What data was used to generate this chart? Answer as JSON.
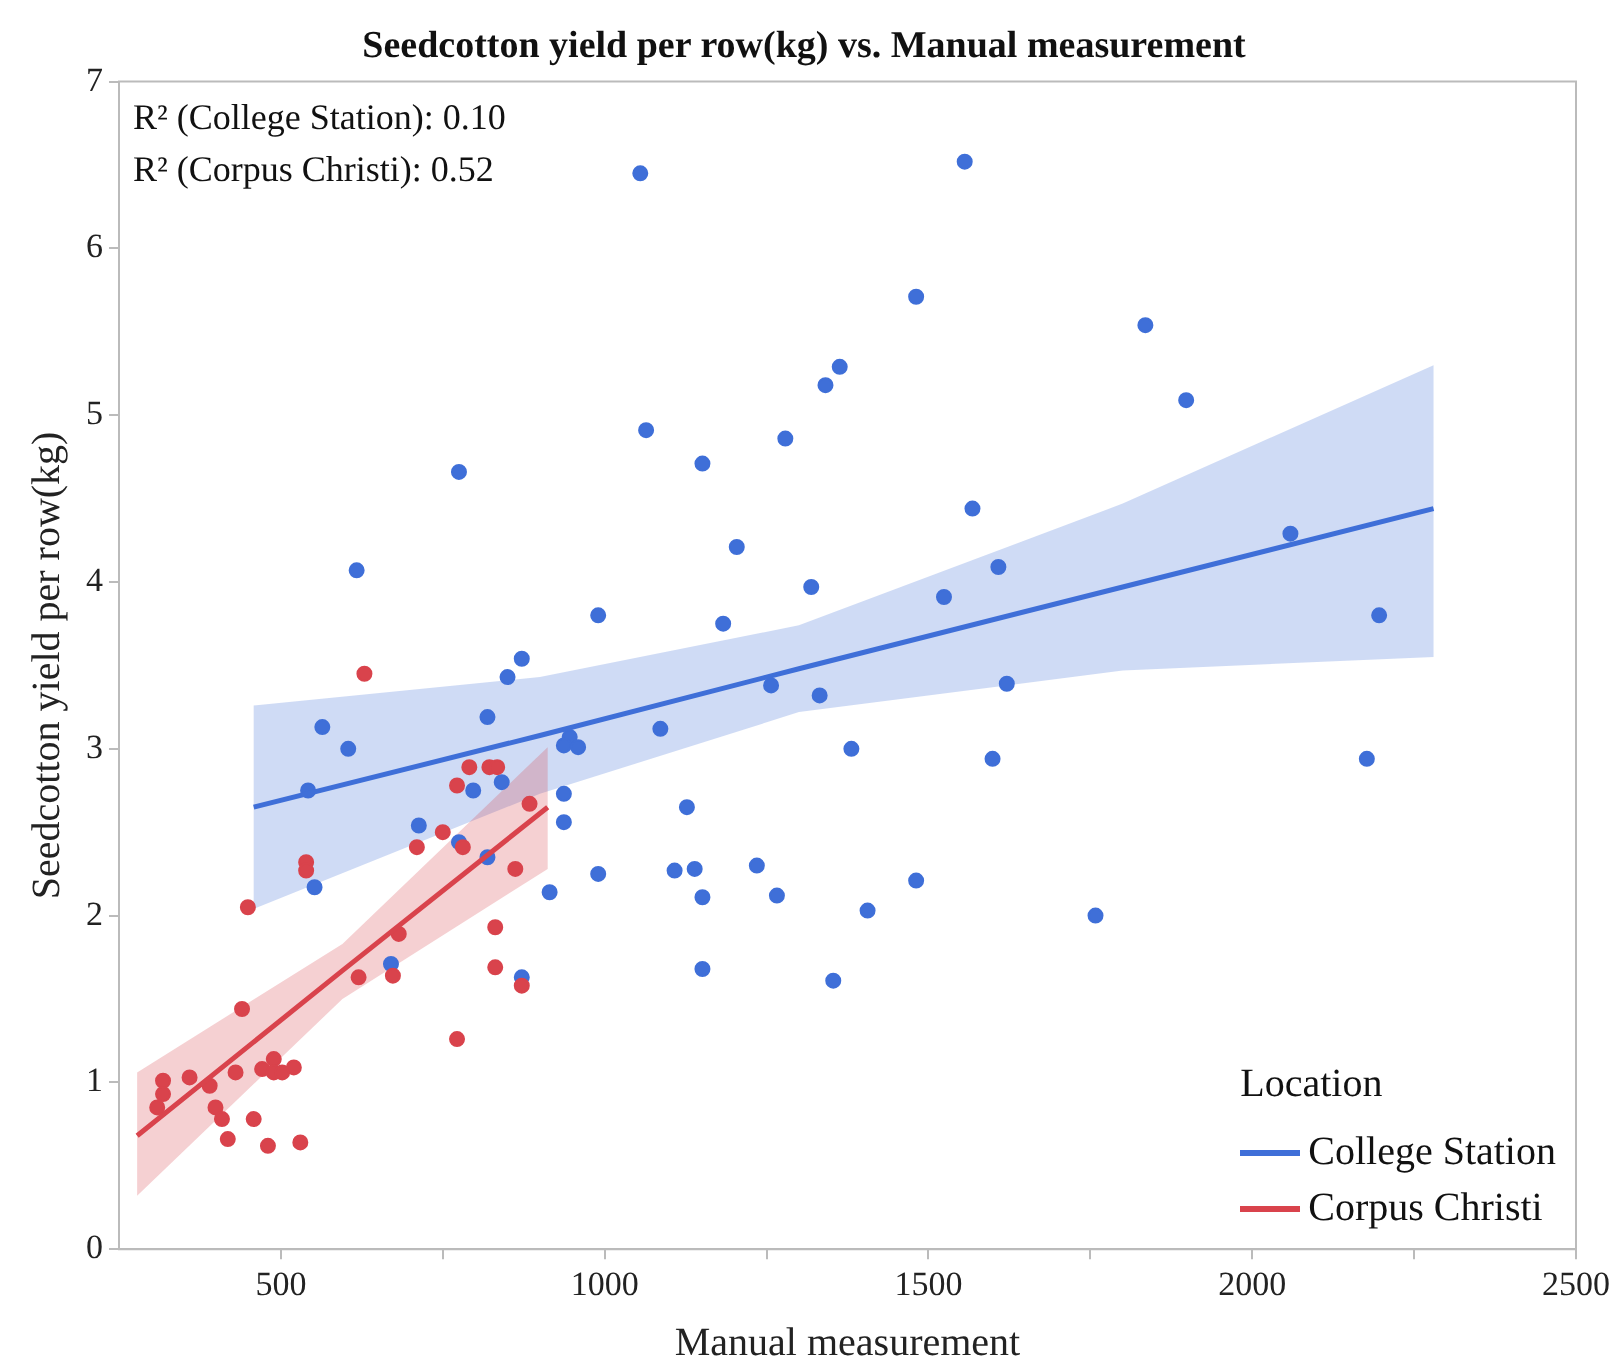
{
  "chart_data": {
    "type": "scatter",
    "title": "Seedcotton yield per row(kg) vs. Manual measurement",
    "xlabel": "Manual measurement",
    "ylabel": "Seedcotton yield per row(kg)",
    "legend_title": "Location",
    "annotations": [
      "R² (College Station): 0.10",
      "R² (Corpus Christi): 0.52"
    ],
    "xlim": [
      250,
      2500
    ],
    "xticks": [
      500,
      {
        "value": 750,
        "label": null
      },
      1000,
      {
        "value": 1250,
        "label": null
      },
      1500,
      {
        "value": 1750,
        "label": null
      },
      2000,
      {
        "value": 2250,
        "label": null
      },
      2500
    ],
    "ylim": [
      0,
      7
    ],
    "yticks": [
      0,
      1,
      2,
      3,
      4,
      5,
      6,
      7
    ],
    "grid": false,
    "legend": "bottom right",
    "marker": "circle",
    "series": [
      {
        "color": "#3f6fd8",
        "x": [
          1055,
          775,
          617,
          1064,
          1151,
          1279,
          1341,
          1363,
          1204,
          1319,
          990,
          1183,
          872,
          1556,
          1481,
          1835,
          1898,
          1568,
          1608,
          1524,
          2059,
          2196,
          850,
          819,
          564,
          604,
          542,
          552,
          946,
          937,
          959,
          1086,
          1257,
          1332,
          1381,
          797,
          841,
          713,
          775,
          819,
          937,
          937,
          915,
          990,
          1108,
          1139,
          1127,
          1151,
          1235,
          1266,
          1151,
          1353,
          670,
          872,
          1621,
          1599,
          2177,
          1481,
          1406,
          1758
        ],
        "values": [
          6.45,
          4.66,
          4.07,
          4.91,
          4.71,
          4.86,
          5.18,
          5.29,
          4.21,
          3.97,
          3.8,
          3.75,
          3.54,
          6.52,
          5.71,
          5.54,
          5.09,
          4.44,
          4.09,
          3.91,
          4.29,
          3.8,
          3.43,
          3.19,
          3.13,
          3.0,
          2.75,
          2.17,
          3.07,
          3.02,
          3.01,
          3.12,
          3.38,
          3.32,
          3.0,
          2.75,
          2.8,
          2.54,
          2.44,
          2.35,
          2.73,
          2.56,
          2.14,
          2.25,
          2.27,
          2.28,
          2.65,
          2.11,
          2.3,
          2.12,
          1.68,
          1.61,
          1.71,
          1.63,
          3.39,
          2.94,
          2.94,
          2.21,
          2.03,
          2.0
        ]
      },
      {
        "color": "#d9434c",
        "x": [
          629,
          791,
          822,
          834,
          772,
          884,
          750,
          710,
          781,
          862,
          539,
          539,
          449,
          682,
          831,
          620,
          673,
          831,
          872,
          772,
          440,
          318,
          318,
          309,
          359,
          390,
          430,
          399,
          409,
          418,
          458,
          480,
          471,
          489,
          489,
          502,
          520,
          530
        ],
        "values": [
          3.45,
          2.89,
          2.89,
          2.89,
          2.78,
          2.67,
          2.5,
          2.41,
          2.41,
          2.28,
          2.32,
          2.27,
          2.05,
          1.89,
          1.93,
          1.63,
          1.64,
          1.69,
          1.58,
          1.26,
          1.44,
          1.01,
          0.93,
          0.85,
          1.03,
          0.98,
          1.06,
          0.85,
          0.78,
          0.66,
          0.78,
          0.62,
          1.08,
          1.14,
          1.06,
          1.06,
          1.09,
          0.64
        ]
      },
      {
        "type": "line",
        "marker": "none",
        "name": "College Station",
        "color": "#3f6fd8",
        "x": [
          458,
          900,
          1300,
          1800,
          2280
        ],
        "values": [
          2.65,
          3.08,
          3.48,
          3.97,
          4.44
        ],
        "lower": [
          2.04,
          2.73,
          3.22,
          3.47,
          3.55
        ],
        "upper": [
          3.26,
          3.43,
          3.74,
          4.47,
          5.3
        ]
      },
      {
        "type": "line",
        "marker": "none",
        "name": "Corpus Christi",
        "color": "#d9434c",
        "x": [
          278,
          595,
          912
        ],
        "values": [
          0.68,
          1.67,
          2.65
        ],
        "lower": [
          0.32,
          1.5,
          2.28
        ],
        "upper": [
          1.06,
          1.83,
          3.01
        ]
      }
    ]
  }
}
